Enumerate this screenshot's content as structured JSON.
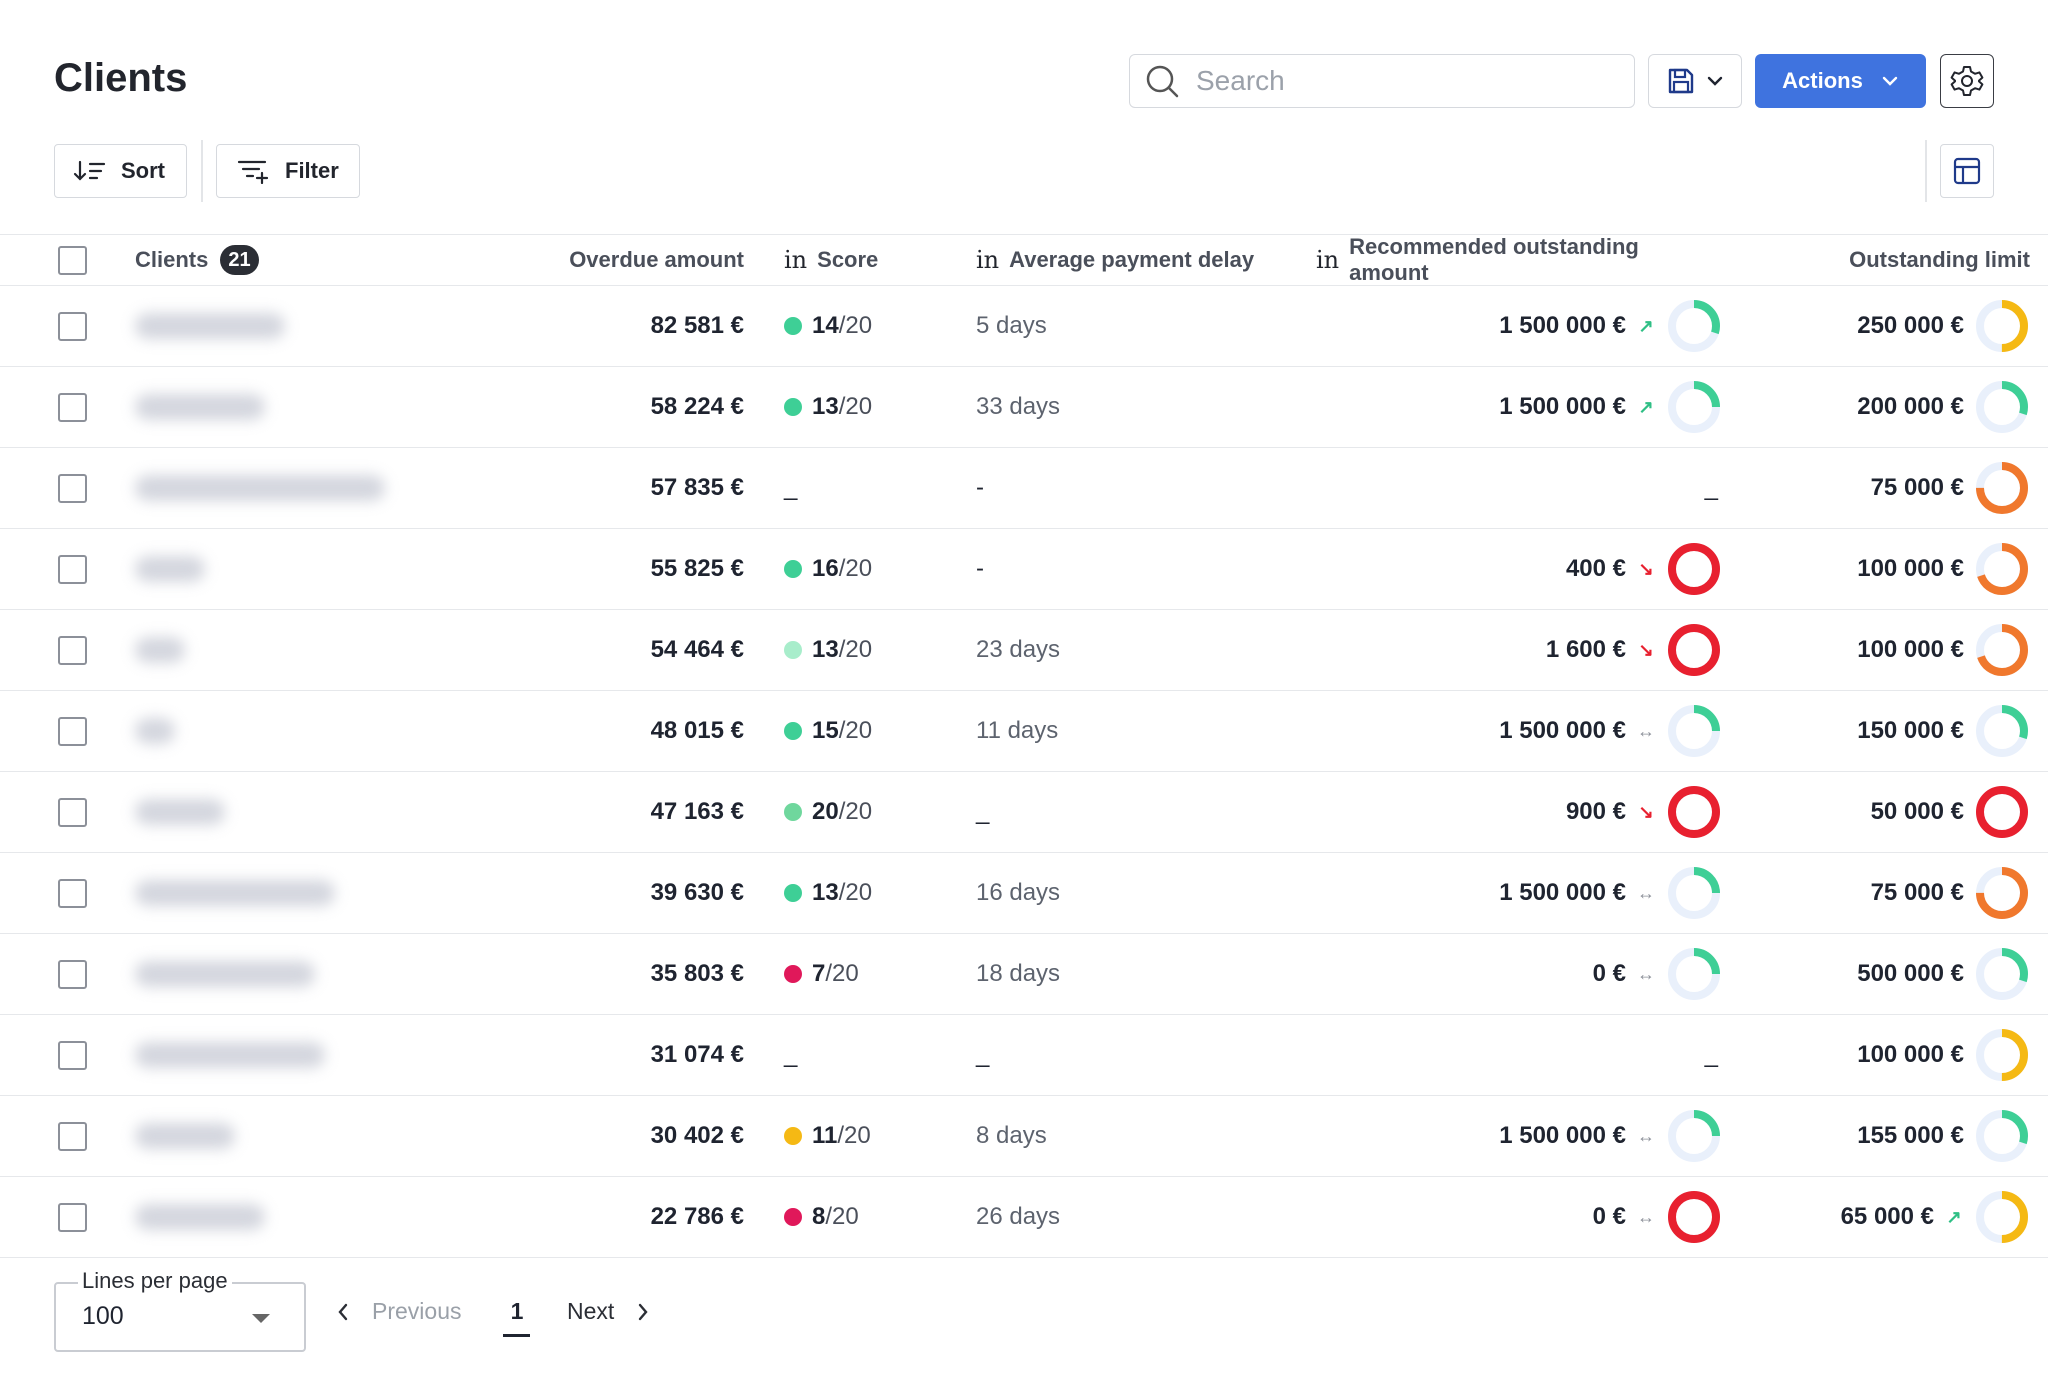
{
  "header": {
    "title": "Clients"
  },
  "search": {
    "placeholder": "Search"
  },
  "toolbar": {
    "actions_label": "Actions",
    "sort_label": "Sort",
    "filter_label": "Filter"
  },
  "table": {
    "columns": {
      "clients": "Clients",
      "clients_count": "21",
      "overdue": "Overdue amount",
      "score_prefix": "in",
      "score": "Score",
      "delay_prefix": "in",
      "delay": "Average payment delay",
      "reco_prefix": "in",
      "reco": "Recommended outstanding amount",
      "limit": "Outstanding limit"
    },
    "rows": [
      {
        "overdue": "82 581 €",
        "score": "14",
        "score_max": "/20",
        "score_color": "#3ecf96",
        "delay": "5 days",
        "reco": "1 500 000 €",
        "reco_trend": "up",
        "reco_ring": {
          "color": "#3ecf96",
          "fill": 0.3
        },
        "limit": "250 000 €",
        "limit_trend": "",
        "limit_ring": {
          "color": "#f5b914",
          "fill": 0.5
        }
      },
      {
        "overdue": "58 224 €",
        "score": "13",
        "score_max": "/20",
        "score_color": "#3ecf96",
        "delay": "33 days",
        "reco": "1 500 000 €",
        "reco_trend": "up",
        "reco_ring": {
          "color": "#3ecf96",
          "fill": 0.25
        },
        "limit": "200 000 €",
        "limit_trend": "",
        "limit_ring": {
          "color": "#3ecf96",
          "fill": 0.3
        }
      },
      {
        "overdue": "57 835 €",
        "score": "",
        "score_max": "",
        "score_color": "",
        "delay": "-",
        "reco": "",
        "reco_trend": "",
        "reco_ring": null,
        "limit": "75 000 €",
        "limit_trend": "",
        "limit_ring": {
          "color": "#f0782d",
          "fill": 0.75
        }
      },
      {
        "overdue": "55 825 €",
        "score": "16",
        "score_max": "/20",
        "score_color": "#3ecf96",
        "delay": "-",
        "reco": "400 €",
        "reco_trend": "down",
        "reco_ring": {
          "color": "#e8202f",
          "fill": 1
        },
        "limit": "100 000 €",
        "limit_trend": "",
        "limit_ring": {
          "color": "#f0782d",
          "fill": 0.7
        }
      },
      {
        "overdue": "54 464 €",
        "score": "13",
        "score_max": "/20",
        "score_color": "#a8edcb",
        "delay": "23 days",
        "reco": "1 600 €",
        "reco_trend": "down",
        "reco_ring": {
          "color": "#e8202f",
          "fill": 1
        },
        "limit": "100 000 €",
        "limit_trend": "",
        "limit_ring": {
          "color": "#f0782d",
          "fill": 0.7
        }
      },
      {
        "overdue": "48 015 €",
        "score": "15",
        "score_max": "/20",
        "score_color": "#3ecf96",
        "delay": "11 days",
        "reco": "1 500 000 €",
        "reco_trend": "flat",
        "reco_ring": {
          "color": "#3ecf96",
          "fill": 0.25
        },
        "limit": "150 000 €",
        "limit_trend": "",
        "limit_ring": {
          "color": "#3ecf96",
          "fill": 0.3
        }
      },
      {
        "overdue": "47 163 €",
        "score": "20",
        "score_max": "/20",
        "score_color": "#6fd79d",
        "delay": "",
        "reco": "900 €",
        "reco_trend": "down",
        "reco_ring": {
          "color": "#e8202f",
          "fill": 1
        },
        "limit": "50 000 €",
        "limit_trend": "",
        "limit_ring": {
          "color": "#e8202f",
          "fill": 1
        }
      },
      {
        "overdue": "39 630 €",
        "score": "13",
        "score_max": "/20",
        "score_color": "#3ecf96",
        "delay": "16 days",
        "reco": "1 500 000 €",
        "reco_trend": "flat",
        "reco_ring": {
          "color": "#3ecf96",
          "fill": 0.25
        },
        "limit": "75 000 €",
        "limit_trend": "",
        "limit_ring": {
          "color": "#f0782d",
          "fill": 0.75
        }
      },
      {
        "overdue": "35 803 €",
        "score": "7",
        "score_max": "/20",
        "score_color": "#e0185a",
        "delay": "18 days",
        "reco": "0 €",
        "reco_trend": "flat",
        "reco_ring": {
          "color": "#3ecf96",
          "fill": 0.25
        },
        "limit": "500 000 €",
        "limit_trend": "",
        "limit_ring": {
          "color": "#3ecf96",
          "fill": 0.3
        }
      },
      {
        "overdue": "31 074 €",
        "score": "",
        "score_max": "",
        "score_color": "",
        "delay": "",
        "reco": "",
        "reco_trend": "",
        "reco_ring": null,
        "limit": "100 000 €",
        "limit_trend": "",
        "limit_ring": {
          "color": "#f5b914",
          "fill": 0.5
        }
      },
      {
        "overdue": "30 402 €",
        "score": "11",
        "score_max": "/20",
        "score_color": "#f5b914",
        "delay": "8 days",
        "reco": "1 500 000 €",
        "reco_trend": "flat",
        "reco_ring": {
          "color": "#3ecf96",
          "fill": 0.25
        },
        "limit": "155 000 €",
        "limit_trend": "",
        "limit_ring": {
          "color": "#3ecf96",
          "fill": 0.3
        }
      },
      {
        "overdue": "22 786 €",
        "score": "8",
        "score_max": "/20",
        "score_color": "#e0185a",
        "delay": "26 days",
        "reco": "0 €",
        "reco_trend": "flat",
        "reco_ring": {
          "color": "#e8202f",
          "fill": 1
        },
        "limit": "65 000 €",
        "limit_trend": "up",
        "limit_ring": {
          "color": "#f5b914",
          "fill": 0.5
        }
      }
    ]
  },
  "pagination": {
    "lines_per_page_label": "Lines per page",
    "lines_per_page_value": "100",
    "previous_label": "Previous",
    "current_page": "1",
    "next_label": "Next"
  },
  "colors": {
    "accent": "#3f73df",
    "text": "#1f2430",
    "border": "#e6e8eb"
  }
}
